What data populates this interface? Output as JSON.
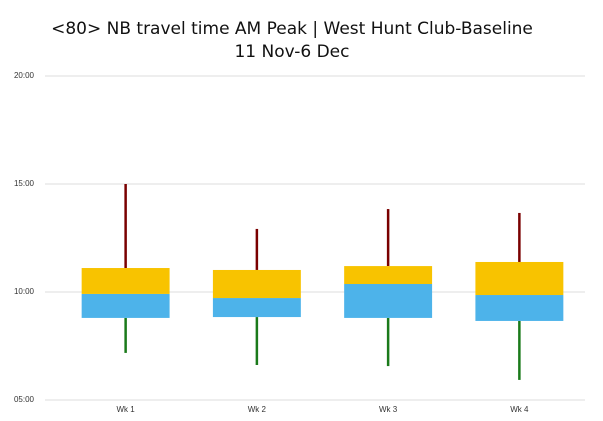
{
  "chart_data": {
    "type": "box",
    "title": "<80> NB travel time AM Peak | West Hunt Club-Baseline",
    "subtitle": "11 Nov-6 Dec",
    "categories": [
      "Wk 1",
      "Wk 2",
      "Wk 3",
      "Wk 4"
    ],
    "min": [
      7.18,
      6.62,
      6.57,
      5.93
    ],
    "q1": [
      8.8,
      8.84,
      8.8,
      8.66
    ],
    "median": [
      9.91,
      9.72,
      10.37,
      9.86
    ],
    "q3": [
      11.11,
      11.02,
      11.2,
      11.39
    ],
    "max": [
      15.0,
      12.92,
      13.84,
      13.66
    ],
    "colors": {
      "lower_box": "#4db3ea",
      "upper_box": "#f8c300",
      "lower_whisker": "#1a7a1a",
      "upper_whisker": "#7a0000"
    },
    "ylim": [
      5,
      20
    ],
    "yticks": [
      {
        "value": 5,
        "label": "05:00"
      },
      {
        "value": 10,
        "label": "10:00"
      },
      {
        "value": 15,
        "label": "15:00"
      },
      {
        "value": 20,
        "label": "20:00"
      }
    ],
    "grid": true
  }
}
